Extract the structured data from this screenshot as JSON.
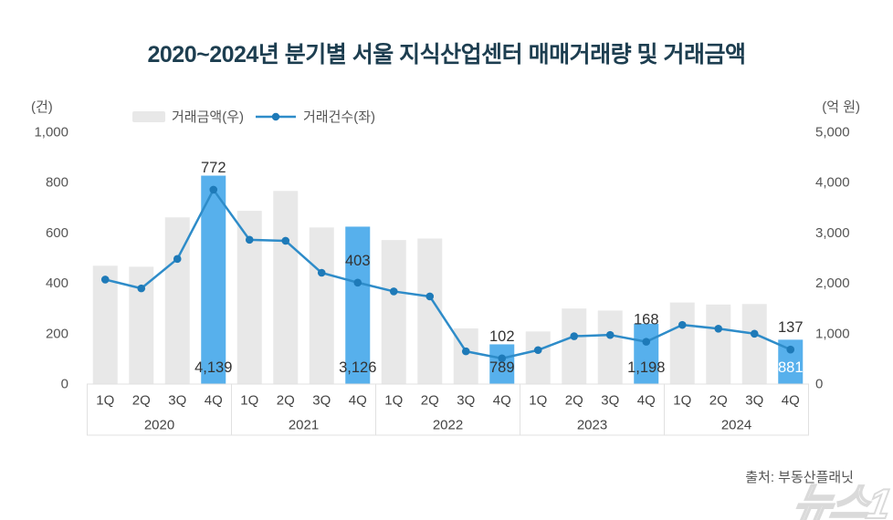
{
  "title": "2020~2024년 분기별 서울 지식산업센터 매매거래량 및 거래금액",
  "source": "출처: 부동산플래닛",
  "watermark": "뉴스1",
  "legend": {
    "amount_label": "거래금액(우)",
    "count_label": "거래건수(좌)"
  },
  "colors": {
    "bar_gray": "#e8e8e8",
    "bar_highlight": "#57b0ec",
    "line": "#2e8cc9",
    "dot": "#1e7ab8",
    "tick_text": "#555555",
    "axis_band_border": "#e1e1e1",
    "category_text": "#444444",
    "value_label_text": "#333333",
    "title_text": "#1d3e50"
  },
  "chart_data": {
    "type": "bar",
    "subtype": "combo-bar-line",
    "title": "2020~2024년 분기별 서울 지식산업센터 매매거래량 및 거래금액",
    "grid": false,
    "legend_position": "top-left",
    "groups": [
      {
        "year": "2020",
        "quarters": [
          "1Q",
          "2Q",
          "3Q",
          "4Q"
        ]
      },
      {
        "year": "2021",
        "quarters": [
          "1Q",
          "2Q",
          "3Q",
          "4Q"
        ]
      },
      {
        "year": "2022",
        "quarters": [
          "1Q",
          "2Q",
          "3Q",
          "4Q"
        ]
      },
      {
        "year": "2023",
        "quarters": [
          "1Q",
          "2Q",
          "3Q",
          "4Q"
        ]
      },
      {
        "year": "2024",
        "quarters": [
          "1Q",
          "2Q",
          "3Q",
          "4Q"
        ]
      }
    ],
    "series": [
      {
        "name": "거래금액(우)",
        "type": "bar",
        "axis": "right",
        "values": [
          2350,
          2330,
          3310,
          4139,
          3440,
          3835,
          3110,
          3126,
          2860,
          2890,
          1105,
          789,
          1045,
          1500,
          1460,
          1198,
          1620,
          1580,
          1590,
          881
        ]
      },
      {
        "name": "거래건수(좌)",
        "type": "line",
        "axis": "left",
        "values": [
          415,
          380,
          497,
          772,
          573,
          569,
          442,
          403,
          368,
          348,
          130,
          102,
          135,
          190,
          195,
          168,
          235,
          220,
          200,
          137
        ]
      }
    ],
    "highlights": [
      {
        "index": 3,
        "count_label": "772",
        "amount_label": "4,139",
        "amount_label_color": "#333333"
      },
      {
        "index": 7,
        "count_label": "403",
        "amount_label": "3,126",
        "amount_label_color": "#333333"
      },
      {
        "index": 11,
        "count_label": "102",
        "amount_label": "789",
        "amount_label_color": "#333333"
      },
      {
        "index": 15,
        "count_label": "168",
        "amount_label": "1,198",
        "amount_label_color": "#333333"
      },
      {
        "index": 19,
        "count_label": "137",
        "amount_label": "881",
        "amount_label_color": "#ffffff"
      }
    ],
    "left_axis": {
      "unit": "(건)",
      "tick_values": [
        0,
        200,
        400,
        600,
        800,
        1000
      ],
      "tick_labels": [
        "0",
        "200",
        "400",
        "600",
        "800",
        "1,000"
      ],
      "max": 1000
    },
    "right_axis": {
      "unit": "(억 원)",
      "tick_values": [
        0,
        1000,
        2000,
        3000,
        4000,
        5000
      ],
      "tick_labels": [
        "0",
        "1,000",
        "2,000",
        "3,000",
        "4,000",
        "5,000"
      ],
      "max": 5000
    }
  }
}
